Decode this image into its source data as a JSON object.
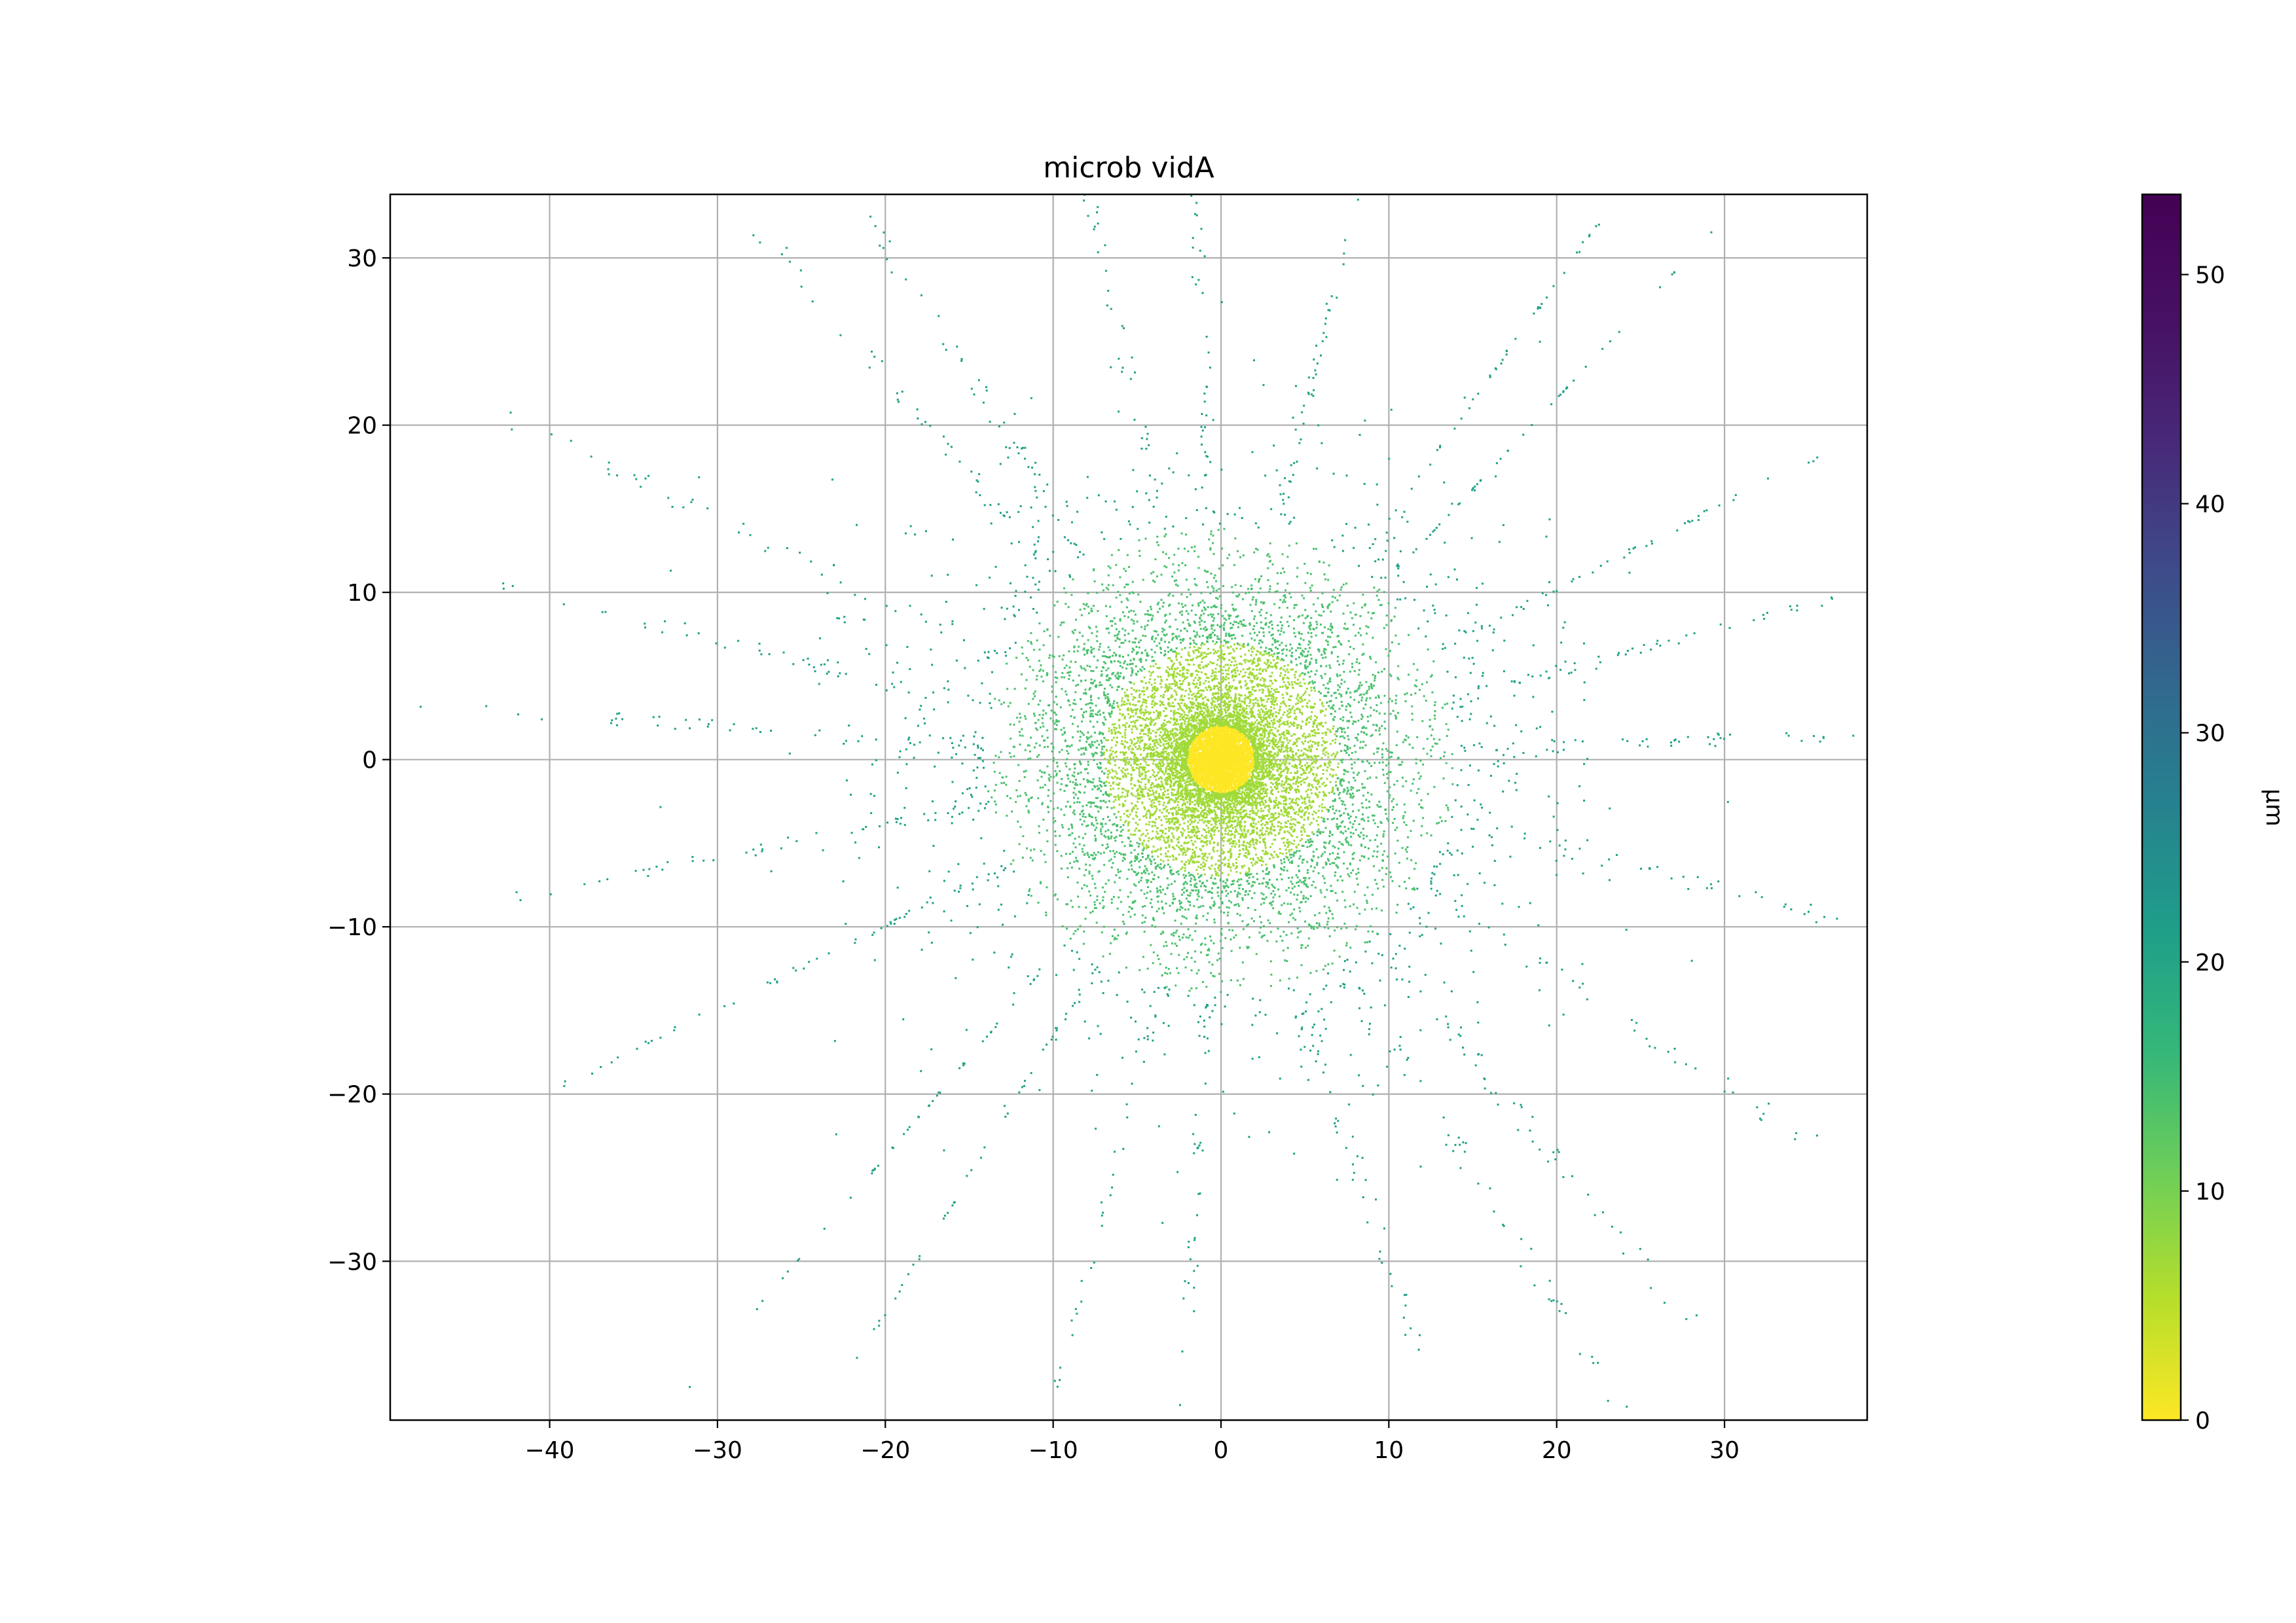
{
  "chart_data": {
    "type": "scatter",
    "title": "microb vidA",
    "xlabel": "",
    "ylabel": "",
    "xlim": [
      -49.5,
      38.5
    ],
    "ylim": [
      -39.5,
      33.8
    ],
    "xticks": [
      -40,
      -30,
      -20,
      -10,
      0,
      10,
      20,
      30
    ],
    "xtick_labels": [
      "−40",
      "−30",
      "−20",
      "−10",
      "0",
      "10",
      "20",
      "30"
    ],
    "yticks": [
      -30,
      -20,
      -10,
      0,
      10,
      20,
      30
    ],
    "ytick_labels": [
      "−30",
      "−20",
      "−10",
      "0",
      "10",
      "20",
      "30"
    ],
    "grid": true,
    "colorbar": {
      "label": "µm",
      "colormap": "viridis",
      "reversed": true,
      "range": [
        0,
        53.5
      ],
      "ticks": [
        0,
        10,
        20,
        30,
        40,
        50
      ],
      "tick_labels": [
        "0",
        "10",
        "20",
        "30",
        "40",
        "50"
      ]
    },
    "distribution": {
      "center": [
        0,
        0
      ],
      "color_by": "radial distance from origin",
      "core_sigma": 1.3,
      "mid_sigma": 4.5,
      "halo_sigma": 9,
      "ray_count": 24,
      "ray_max_radius": 45
    }
  },
  "colors": {
    "grid": "#b0b0b0",
    "axes": "#000000",
    "core": "#fde725",
    "mid": "#a0da39",
    "outer": "#4ac16d",
    "far": "#1fa187"
  }
}
